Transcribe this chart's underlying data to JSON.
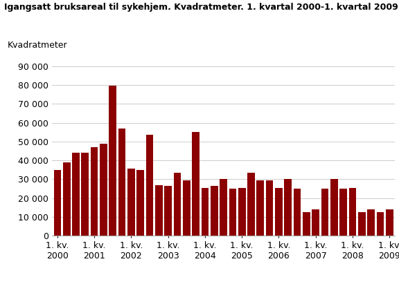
{
  "title": "Igangsatt bruksareal til sykehjem. Kvadratmeter. 1. kvartal 2000-1. kvartal 2009",
  "ylabel": "Kvadratmeter",
  "bar_color": "#8B0000",
  "values": [
    35000,
    39000,
    44000,
    44000,
    47000,
    49000,
    79500,
    57000,
    35500,
    35000,
    53500,
    27000,
    26500,
    33500,
    29500,
    55000,
    25500,
    26500,
    30000,
    25000,
    25500,
    33500,
    29500,
    29500,
    25500,
    30000,
    25000,
    12500,
    14000,
    25000,
    30000,
    25000,
    25500,
    12500,
    14000,
    12500,
    14000
  ],
  "ylim": [
    0,
    95000
  ],
  "yticks": [
    0,
    10000,
    20000,
    30000,
    40000,
    50000,
    60000,
    70000,
    80000,
    90000
  ],
  "background_color": "#ffffff",
  "grid_color": "#cccccc",
  "title_fontsize": 9,
  "axis_fontsize": 9
}
